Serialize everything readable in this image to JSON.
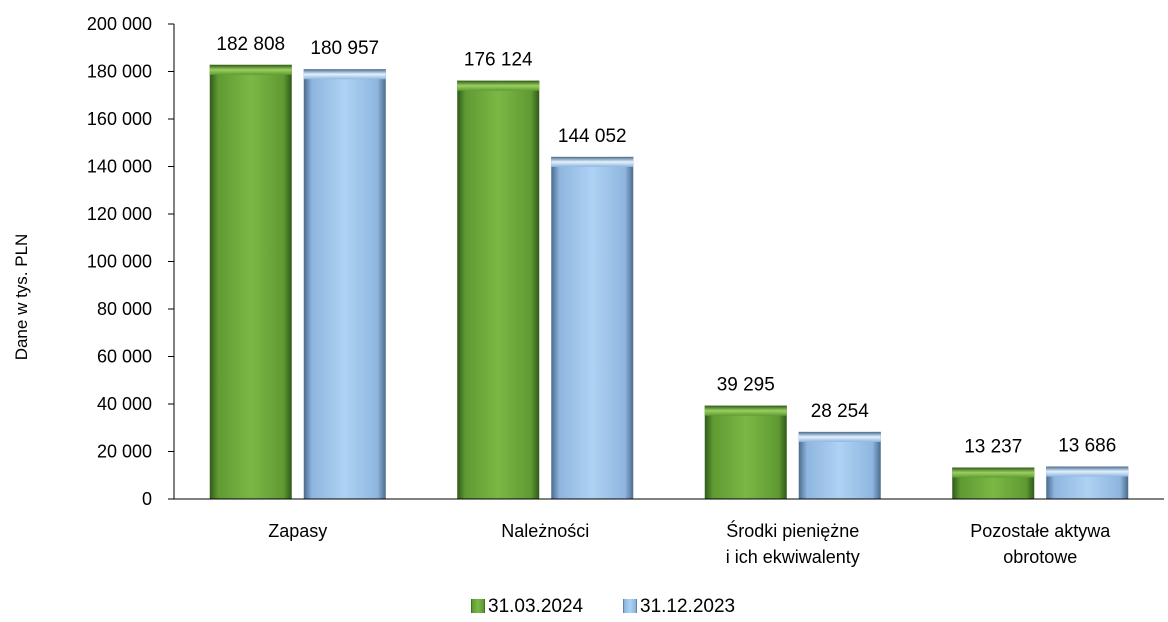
{
  "chart_data": {
    "type": "bar",
    "ylabel": "Dane w tys. PLN",
    "ylim": [
      0,
      200000
    ],
    "y_ticks": [
      "0",
      "20 000",
      "40 000",
      "60 000",
      "80 000",
      "100 000",
      "120 000",
      "140 000",
      "160 000",
      "180 000",
      "200 000"
    ],
    "categories": [
      [
        "Zapasy"
      ],
      [
        "Należności"
      ],
      [
        "Środki pieniężne",
        "i ich ekwiwalenty"
      ],
      [
        "Pozostałe aktywa",
        "obrotowe"
      ]
    ],
    "series": [
      {
        "name": "31.03.2024",
        "color": "#70a83c",
        "values": [
          182808,
          176124,
          39295,
          13237
        ],
        "labels": [
          "182 808",
          "176 124",
          "39 295",
          "13 237"
        ]
      },
      {
        "name": "31.12.2023",
        "color": "#a9cdf0",
        "values": [
          180957,
          144052,
          28254,
          13686
        ],
        "labels": [
          "180 957",
          "144 052",
          "28 254",
          "13 686"
        ]
      }
    ],
    "legend": "bottom",
    "grid": false
  }
}
